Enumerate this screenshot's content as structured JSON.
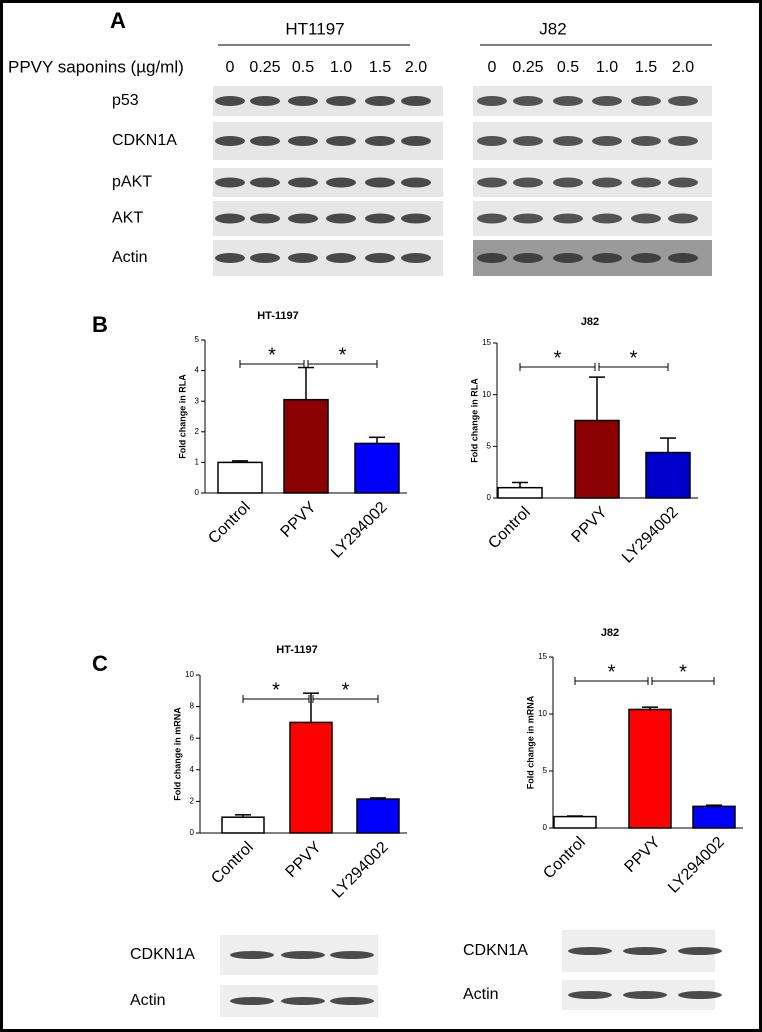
{
  "panel_labels": [
    "A",
    "B",
    "C"
  ],
  "blot_a": {
    "groups": [
      "HT1197",
      "J82"
    ],
    "treatment_label": "PPVY saponins (µg/ml)",
    "doses": [
      "0",
      "0.25",
      "0.5",
      "1.0",
      "1.5",
      "2.0"
    ],
    "rows": [
      "p53",
      "CDKN1A",
      "pAKT",
      "AKT",
      "Actin"
    ]
  },
  "blot_c": {
    "left_rows": [
      "CDKN1A",
      "Actin"
    ],
    "right_rows": [
      "CDKN1A",
      "Actin"
    ]
  },
  "chart_data": [
    {
      "type": "bar",
      "title": "HT-1197",
      "ylabel": "Fold change in RLA",
      "categories": [
        "Control",
        "PPVY",
        "LY294002"
      ],
      "values": [
        1.0,
        3.05,
        1.62
      ],
      "errors": [
        0.05,
        1.05,
        0.2
      ],
      "colors": [
        "#ffffff",
        "#8b0000",
        "#0000ff"
      ],
      "ylim": [
        0,
        5
      ],
      "yticks": [
        0,
        1,
        2,
        3,
        4,
        5
      ],
      "annotations": [
        "*",
        "*"
      ]
    },
    {
      "type": "bar",
      "title": "J82",
      "ylabel": "Fold change in RLA",
      "categories": [
        "Control",
        "PPVY",
        "LY294002"
      ],
      "values": [
        1.0,
        7.5,
        4.4
      ],
      "errors": [
        0.5,
        4.2,
        1.4
      ],
      "colors": [
        "#ffffff",
        "#8b0000",
        "#0000cc"
      ],
      "ylim": [
        0,
        15
      ],
      "yticks": [
        0,
        5,
        10,
        15
      ],
      "annotations": [
        "*",
        "*"
      ]
    },
    {
      "type": "bar",
      "title": "HT-1197",
      "ylabel": "Fold change in mRNA",
      "categories": [
        "Control",
        "PPVY",
        "LY294002"
      ],
      "values": [
        1.0,
        7.0,
        2.15
      ],
      "errors": [
        0.15,
        1.85,
        0.07
      ],
      "colors": [
        "#ffffff",
        "#ff0000",
        "#0000ff"
      ],
      "ylim": [
        0,
        10
      ],
      "yticks": [
        0,
        2,
        4,
        6,
        8,
        10
      ],
      "annotations": [
        "*",
        "*"
      ]
    },
    {
      "type": "bar",
      "title": "J82",
      "ylabel": "Fold change in mRNA",
      "categories": [
        "Control",
        "PPVY",
        "LY294002"
      ],
      "values": [
        1.0,
        10.4,
        1.9
      ],
      "errors": [
        0.05,
        0.2,
        0.1
      ],
      "colors": [
        "#ffffff",
        "#ff0000",
        "#0000ff"
      ],
      "ylim": [
        0,
        15
      ],
      "yticks": [
        0,
        5,
        10,
        15
      ],
      "annotations": [
        "*",
        "*"
      ]
    }
  ]
}
